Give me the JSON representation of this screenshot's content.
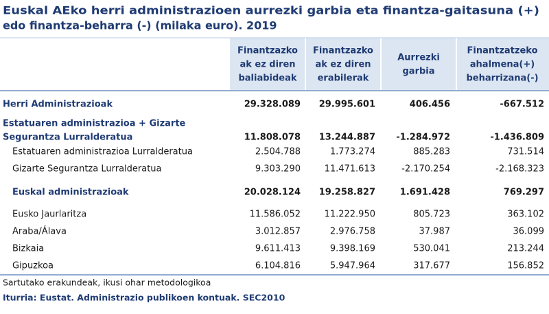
{
  "title": [
    "Euskal AEko herri administrazioen aurrezki garbia eta finantza-gaitasuna (+)",
    "edo finantza-beharra (-)  (milaka euro). 2019"
  ],
  "table": {
    "headers": [
      [
        "Finantzazko",
        "ak ez diren",
        "baliabideak"
      ],
      [
        "Finantzazko",
        "ak ez diren",
        "erabilerak"
      ],
      [
        "Aurrezki",
        "garbia"
      ],
      [
        "Finantzatzeko",
        "ahalmena(+)",
        "beharrizana(-)"
      ]
    ],
    "rows": [
      {
        "label": [
          "Herri Administrazioak"
        ],
        "values": [
          "29.328.089",
          "29.995.601",
          "406.456",
          "-667.512"
        ]
      },
      {
        "label": [
          "Estatuaren administrazioa + Gizarte",
          "Segurantza Lurralderatua"
        ],
        "values": [
          "11.808.078",
          "13.244.887",
          "-1.284.972",
          "-1.436.809"
        ]
      },
      {
        "label": [
          "Estatuaren administrazioa Lurralderatua"
        ],
        "values": [
          "2.504.788",
          "1.773.274",
          "885.283",
          "731.514"
        ]
      },
      {
        "label": [
          "Gizarte Segurantza Lurralderatua"
        ],
        "values": [
          "9.303.290",
          "11.471.613",
          "-2.170.254",
          "-2.168.323"
        ]
      },
      {
        "label": [
          "Euskal administrazioak"
        ],
        "values": [
          "20.028.124",
          "19.258.827",
          "1.691.428",
          "769.297"
        ]
      },
      {
        "label": [
          "Eusko Jaurlaritza"
        ],
        "values": [
          "11.586.052",
          "11.222.950",
          "805.723",
          "363.102"
        ]
      },
      {
        "label": [
          "Araba/Álava"
        ],
        "values": [
          "3.012.857",
          "2.976.758",
          "37.987",
          "36.099"
        ]
      },
      {
        "label": [
          "Bizkaia"
        ],
        "values": [
          "9.611.413",
          "9.398.169",
          "530.041",
          "213.244"
        ]
      },
      {
        "label": [
          "Gipuzkoa"
        ],
        "values": [
          "6.104.816",
          "5.947.964",
          "317.677",
          "156.852"
        ]
      }
    ]
  },
  "notes": [
    "Sartutako erakundeak, ikusi ohar metodologikoa",
    "Iturria: Eustat. Administrazio publikoen kontuak. SEC2010"
  ]
}
